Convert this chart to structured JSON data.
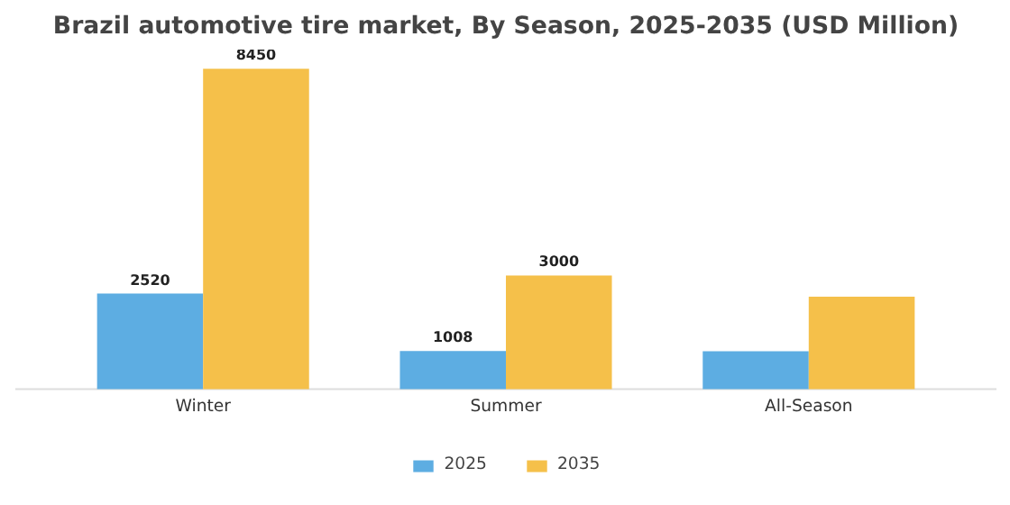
{
  "chart_data": {
    "type": "bar",
    "title": "Brazil automotive tire market, By Season, 2025-2035 (USD Million)",
    "categories": [
      "Winter",
      "Summer",
      "All-Season"
    ],
    "series": [
      {
        "name": "2025",
        "color": "#5dade2",
        "values": [
          2520,
          1008,
          1000
        ],
        "value_labels": [
          "2520",
          "1008",
          null
        ]
      },
      {
        "name": "2035",
        "color": "#f5c04a",
        "values": [
          8450,
          3000,
          2440
        ],
        "value_labels": [
          "8450",
          "3000",
          null
        ]
      }
    ],
    "legend": "bottom"
  }
}
